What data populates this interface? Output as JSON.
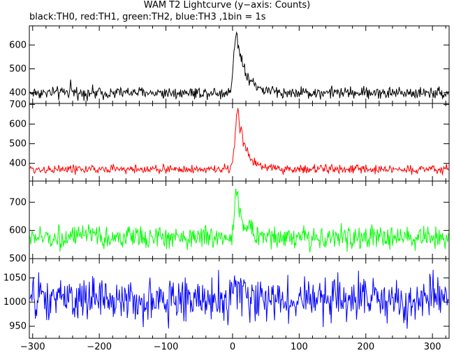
{
  "title": "WAM T2 Lightcurve (y−axis: Counts)",
  "subtitle": "black:TH0, red:TH1, green:TH2, blue:TH3 ,1bin = 1s",
  "chart_data": [
    {
      "type": "line",
      "series": [
        {
          "name": "TH0",
          "color": "#000000"
        }
      ],
      "xlim": [
        -305,
        325
      ],
      "ylim": [
        355,
        680
      ],
      "yticks": [
        400,
        500,
        600
      ],
      "yticklabels": [
        "400",
        "500",
        "600"
      ],
      "baseline": 400,
      "noise": 18,
      "flare": {
        "peak_time": 6,
        "peak_value": 660,
        "rise": 4,
        "decay": 14
      },
      "secondary_spikes": [
        {
          "t": -243,
          "value": 455
        }
      ]
    },
    {
      "type": "line",
      "series": [
        {
          "name": "TH1",
          "color": "#ff0000"
        }
      ],
      "xlim": [
        -305,
        325
      ],
      "ylim": [
        310,
        705
      ],
      "yticks": [
        400,
        500,
        600,
        700
      ],
      "yticklabels": [
        "400",
        "500",
        "600",
        "700"
      ],
      "baseline": 370,
      "noise": 16,
      "flare": {
        "peak_time": 8,
        "peak_value": 680,
        "rise": 4,
        "decay": 12
      }
    },
    {
      "type": "line",
      "series": [
        {
          "name": "TH2",
          "color": "#00ff00"
        }
      ],
      "xlim": [
        -305,
        325
      ],
      "ylim": [
        500,
        775
      ],
      "yticks": [
        500,
        600,
        700
      ],
      "yticklabels": [
        "500",
        "600",
        "700"
      ],
      "baseline": 575,
      "noise": 28,
      "flare": {
        "peak_time": 6,
        "peak_value": 750,
        "rise": 3,
        "decay": 10
      }
    },
    {
      "type": "line",
      "series": [
        {
          "name": "TH3",
          "color": "#0000ff"
        }
      ],
      "xlim": [
        -305,
        325
      ],
      "ylim": [
        925,
        1090
      ],
      "yticks": [
        950,
        1000,
        1050
      ],
      "yticklabels": [
        "950",
        "1000",
        "1050"
      ],
      "baseline": 1005,
      "noise": 32,
      "flare": {
        "peak_time": 5,
        "peak_value": 1050,
        "rise": 3,
        "decay": 6
      }
    }
  ],
  "x_axis": {
    "ticks": [
      -300,
      -200,
      -100,
      0,
      100,
      200,
      300
    ],
    "ticklabels": [
      "−300",
      "−200",
      "−100",
      "0",
      "100",
      "200",
      "300"
    ]
  }
}
